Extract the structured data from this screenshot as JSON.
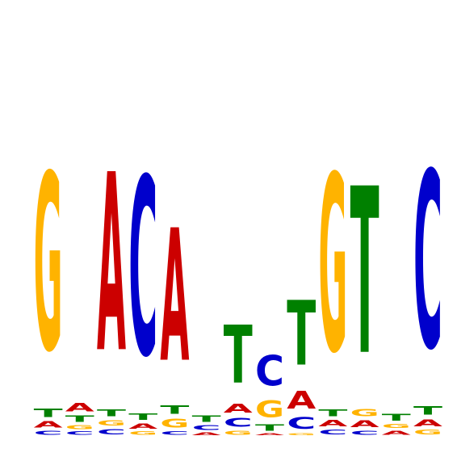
{
  "logo": {
    "alphabet": [
      "A",
      "C",
      "G",
      "T"
    ],
    "colors": {
      "A": "#cc0000",
      "C": "#0000cc",
      "G": "#ffb300",
      "T": "#008000"
    },
    "columns": [
      [
        [
          "C",
          0.06
        ],
        [
          "A",
          0.09
        ],
        [
          "T",
          0.12
        ],
        [
          "G",
          2.6
        ]
      ],
      [
        [
          "C",
          0.05
        ],
        [
          "G",
          0.06
        ],
        [
          "T",
          0.09
        ],
        [
          "A",
          0.12
        ]
      ],
      [
        [
          "C",
          0.08
        ],
        [
          "G",
          0.08
        ],
        [
          "T",
          0.1
        ],
        [
          "A",
          2.62
        ]
      ],
      [
        [
          "G",
          0.05
        ],
        [
          "A",
          0.08
        ],
        [
          "T",
          0.09
        ],
        [
          "C",
          2.62
        ]
      ],
      [
        [
          "C",
          0.05
        ],
        [
          "G",
          0.13
        ],
        [
          "T",
          0.12
        ],
        [
          "A",
          1.95
        ]
      ],
      [
        [
          "A",
          0.04
        ],
        [
          "C",
          0.07
        ],
        [
          "T",
          0.09
        ]
      ],
      [
        [
          "G",
          0.06
        ],
        [
          "C",
          0.13
        ],
        [
          "A",
          0.13
        ],
        [
          "T",
          0.85
        ]
      ],
      [
        [
          "A",
          0.03
        ],
        [
          "T",
          0.09
        ],
        [
          "G",
          0.25
        ],
        [
          "C",
          0.45
        ]
      ],
      [
        [
          "G",
          0.03
        ],
        [
          "C",
          0.17
        ],
        [
          "A",
          0.26
        ],
        [
          "T",
          0.95
        ]
      ],
      [
        [
          "C",
          0.07
        ],
        [
          "A",
          0.09
        ],
        [
          "T",
          0.1
        ],
        [
          "G",
          2.6
        ]
      ],
      [
        [
          "C",
          0.06
        ],
        [
          "A",
          0.1
        ],
        [
          "G",
          0.11
        ],
        [
          "T",
          2.45
        ]
      ],
      [
        [
          "A",
          0.06
        ],
        [
          "G",
          0.06
        ],
        [
          "T",
          0.1
        ]
      ],
      [
        [
          "G",
          0.07
        ],
        [
          "A",
          0.1
        ],
        [
          "T",
          0.12
        ],
        [
          "C",
          2.6
        ]
      ]
    ]
  }
}
